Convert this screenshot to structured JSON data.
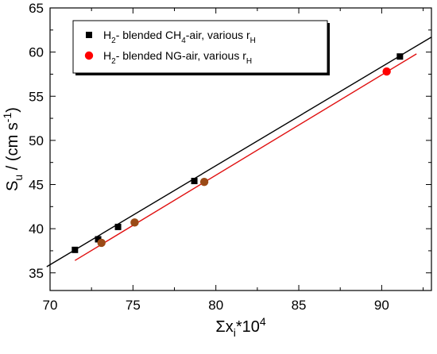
{
  "chart_data": {
    "type": "scatter",
    "xlim": [
      70,
      93
    ],
    "ylim": [
      33,
      65
    ],
    "x_ticks": [
      70,
      75,
      80,
      85,
      90
    ],
    "y_ticks": [
      35,
      40,
      45,
      50,
      55,
      60,
      65
    ],
    "xlabel": {
      "prefix": "Σx",
      "sub": "i",
      "mid": "*10",
      "sup": "4"
    },
    "ylabel": {
      "prefix": "S",
      "sub": "u",
      "mid": " / (cm s",
      "sup": "-1",
      "suffix": ")"
    },
    "grid": false,
    "legend_position": "top-left",
    "series": [
      {
        "name": "H2- blended CH4-air, various rH",
        "legend": {
          "a": "H",
          "a_sub": "2",
          "b": "- blended CH",
          "b_sub": "4",
          "c": "-air, various r",
          "c_sub": "H"
        },
        "marker": "square",
        "color": "#000000",
        "points": [
          {
            "x": 71.5,
            "y": 37.6
          },
          {
            "x": 72.9,
            "y": 38.8
          },
          {
            "x": 74.1,
            "y": 40.2
          },
          {
            "x": 78.7,
            "y": 45.4
          },
          {
            "x": 91.1,
            "y": 59.5
          }
        ],
        "fit_line": {
          "x": [
            69.8,
            93.0
          ],
          "y": [
            35.7,
            61.7
          ],
          "color": "#000000"
        }
      },
      {
        "name": "H2- blended NG-air, various rH",
        "legend": {
          "a": "H",
          "a_sub": "2",
          "b": "- blended NG-air, various r",
          "b_sub": "H"
        },
        "marker": "circle",
        "color": "#ff0000",
        "overlap_color": "#9a4a16",
        "points": [
          {
            "x": 73.1,
            "y": 38.4
          },
          {
            "x": 75.1,
            "y": 40.7
          },
          {
            "x": 79.3,
            "y": 45.3
          },
          {
            "x": 90.3,
            "y": 57.8
          }
        ],
        "fit_line": {
          "x": [
            71.5,
            92.1
          ],
          "y": [
            36.4,
            59.8
          ],
          "color": "#e01010"
        }
      }
    ]
  }
}
